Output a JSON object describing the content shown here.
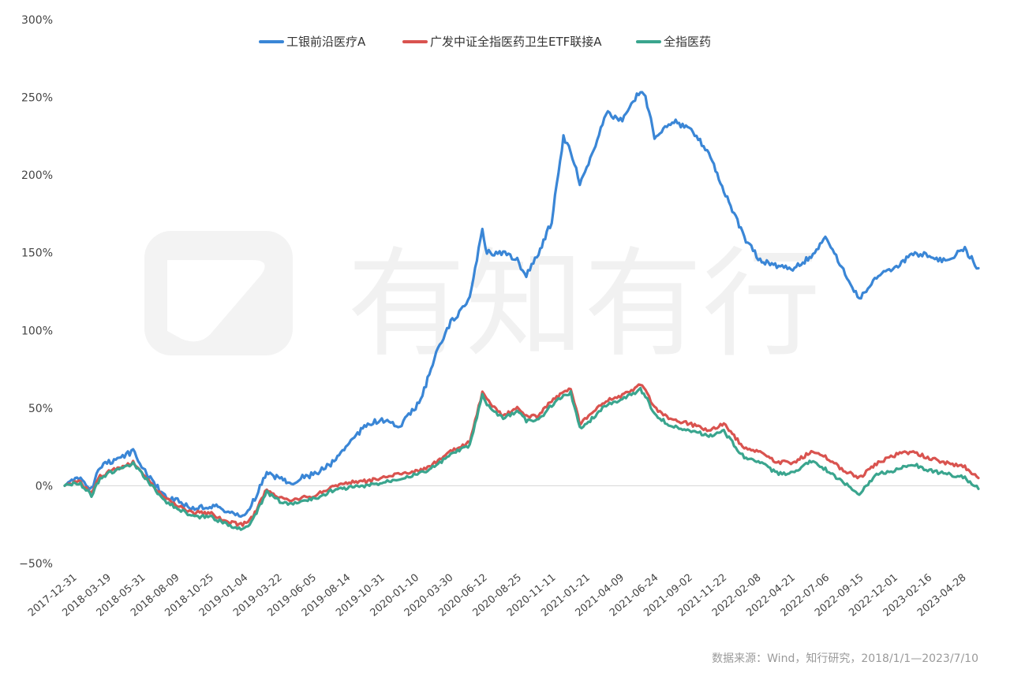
{
  "chart_data": {
    "type": "line",
    "y_unit": "%",
    "ylim": [
      -50,
      300
    ],
    "yticks": [
      -50,
      0,
      50,
      100,
      150,
      200,
      250,
      300
    ],
    "ytick_labels": [
      "−50%",
      "0%",
      "50%",
      "100%",
      "150%",
      "200%",
      "250%",
      "300%"
    ],
    "x_tick_labels": [
      "2017-12-31",
      "2018-03-19",
      "2018-05-31",
      "2018-08-09",
      "2018-10-25",
      "2019-01-04",
      "2019-03-22",
      "2019-06-05",
      "2019-08-14",
      "2019-10-31",
      "2020-01-10",
      "2020-03-30",
      "2020-06-12",
      "2020-08-25",
      "2020-11-11",
      "2021-01-21",
      "2021-04-09",
      "2021-06-24",
      "2021-09-02",
      "2021-11-22",
      "2022-02-08",
      "2022-04-21",
      "2022-07-06",
      "2022-09-15",
      "2022-12-01",
      "2023-02-16",
      "2023-04-28"
    ],
    "legend_position": "top-center",
    "grid": false,
    "source": "数据来源：Wind，知行研究，2018/1/1—2023/7/10",
    "watermark": "有知有行",
    "x": [
      "2017-12-31",
      "2018-01-31",
      "2018-02-28",
      "2018-03-19",
      "2018-04-15",
      "2018-05-31",
      "2018-06-30",
      "2018-07-20",
      "2018-08-09",
      "2018-09-10",
      "2018-10-10",
      "2018-10-25",
      "2018-11-20",
      "2018-12-15",
      "2019-01-04",
      "2019-01-28",
      "2019-02-20",
      "2019-03-22",
      "2019-04-20",
      "2019-05-15",
      "2019-06-05",
      "2019-07-10",
      "2019-08-14",
      "2019-09-20",
      "2019-10-31",
      "2019-12-01",
      "2020-01-10",
      "2020-02-25",
      "2020-03-30",
      "2020-05-01",
      "2020-06-12",
      "2020-07-10",
      "2020-07-20",
      "2020-08-25",
      "2020-09-25",
      "2020-10-15",
      "2020-11-11",
      "2020-12-10",
      "2021-01-05",
      "2021-01-21",
      "2021-02-10",
      "2021-03-05",
      "2021-04-09",
      "2021-05-15",
      "2021-06-24",
      "2021-07-05",
      "2021-07-25",
      "2021-09-02",
      "2021-10-10",
      "2021-11-22",
      "2021-12-25",
      "2022-02-08",
      "2022-03-15",
      "2022-04-21",
      "2022-05-30",
      "2022-07-06",
      "2022-08-10",
      "2022-09-15",
      "2022-10-20",
      "2022-12-01",
      "2023-01-10",
      "2023-02-16",
      "2023-03-20",
      "2023-04-28",
      "2023-06-10",
      "2023-07-10"
    ],
    "series": [
      {
        "name": "工银前沿医疗A",
        "color": "#3a86d6",
        "values": [
          0,
          5,
          -2,
          12,
          16,
          22,
          8,
          0,
          -6,
          -10,
          -15,
          -14,
          -13,
          -15,
          -18,
          -20,
          -10,
          8,
          5,
          2,
          5,
          8,
          15,
          28,
          40,
          42,
          38,
          55,
          85,
          105,
          120,
          165,
          150,
          150,
          145,
          135,
          150,
          170,
          225,
          215,
          195,
          210,
          240,
          235,
          255,
          250,
          225,
          235,
          230,
          215,
          190,
          160,
          145,
          142,
          140,
          148,
          160,
          138,
          120,
          135,
          140,
          150,
          148,
          145,
          152,
          140
        ]
      },
      {
        "name": "广发中证全指医药卫生ETF联接A",
        "color": "#d9534f",
        "values": [
          0,
          3,
          -5,
          6,
          10,
          15,
          5,
          -2,
          -8,
          -13,
          -18,
          -17,
          -18,
          -22,
          -24,
          -25,
          -20,
          -2,
          -8,
          -10,
          -8,
          -6,
          0,
          2,
          3,
          5,
          8,
          10,
          15,
          22,
          28,
          60,
          55,
          45,
          50,
          45,
          45,
          55,
          60,
          62,
          40,
          45,
          55,
          58,
          65,
          62,
          50,
          42,
          40,
          35,
          40,
          24,
          22,
          15,
          15,
          22,
          18,
          10,
          5,
          15,
          20,
          22,
          18,
          15,
          12,
          5
        ]
      },
      {
        "name": "全指医药",
        "color": "#3aa58e",
        "values": [
          0,
          2,
          -6,
          5,
          9,
          14,
          4,
          -3,
          -10,
          -15,
          -20,
          -20,
          -20,
          -24,
          -26,
          -28,
          -22,
          -4,
          -10,
          -12,
          -10,
          -8,
          -3,
          -1,
          0,
          2,
          5,
          8,
          13,
          20,
          26,
          58,
          52,
          43,
          48,
          42,
          42,
          52,
          58,
          60,
          37,
          42,
          52,
          56,
          62,
          58,
          46,
          38,
          36,
          32,
          35,
          18,
          15,
          8,
          8,
          16,
          10,
          2,
          -5,
          8,
          10,
          14,
          10,
          8,
          5,
          -2
        ]
      }
    ]
  }
}
